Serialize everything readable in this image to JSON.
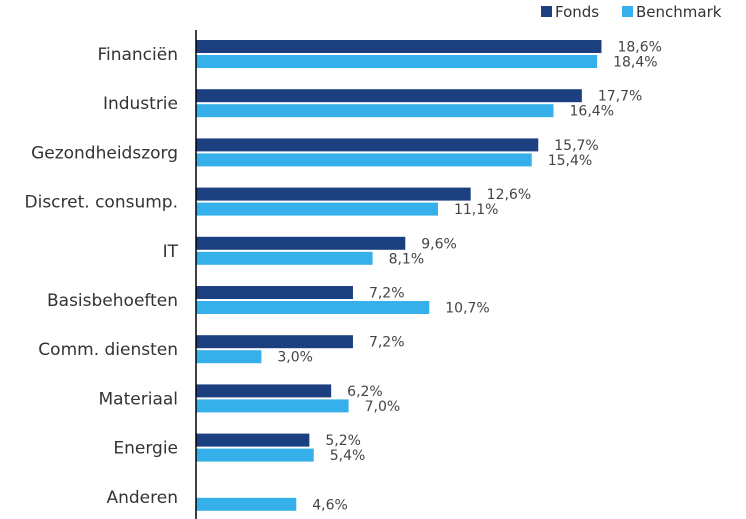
{
  "chart_data": {
    "type": "bar",
    "orientation": "horizontal",
    "categories": [
      "Financiën",
      "Industrie",
      "Gezondheidszorg",
      "Discret. consump.",
      "IT",
      "Basisbehoeften",
      "Comm. diensten",
      "Materiaal",
      "Energie",
      "Anderen"
    ],
    "series": [
      {
        "name": "Fonds",
        "color": "#1c3f7f",
        "values": [
          18.6,
          17.7,
          15.7,
          12.6,
          9.6,
          7.2,
          7.2,
          6.2,
          5.2,
          null
        ],
        "labels": [
          "18,6%",
          "17,7%",
          "15,7%",
          "12,6%",
          "9,6%",
          "7,2%",
          "7,2%",
          "6,2%",
          "5,2%",
          ""
        ]
      },
      {
        "name": "Benchmark",
        "color": "#36b0ea",
        "values": [
          18.4,
          16.4,
          15.4,
          11.1,
          8.1,
          10.7,
          3.0,
          7.0,
          5.4,
          4.6
        ],
        "labels": [
          "18,4%",
          "16,4%",
          "15,4%",
          "11,1%",
          "8,1%",
          "10,7%",
          "3,0%",
          "7,0%",
          "5,4%",
          "4,6%"
        ]
      }
    ],
    "xlim": [
      0,
      20
    ],
    "grid": false,
    "legend_position": "top-right",
    "value_format": "percent with comma decimal"
  }
}
